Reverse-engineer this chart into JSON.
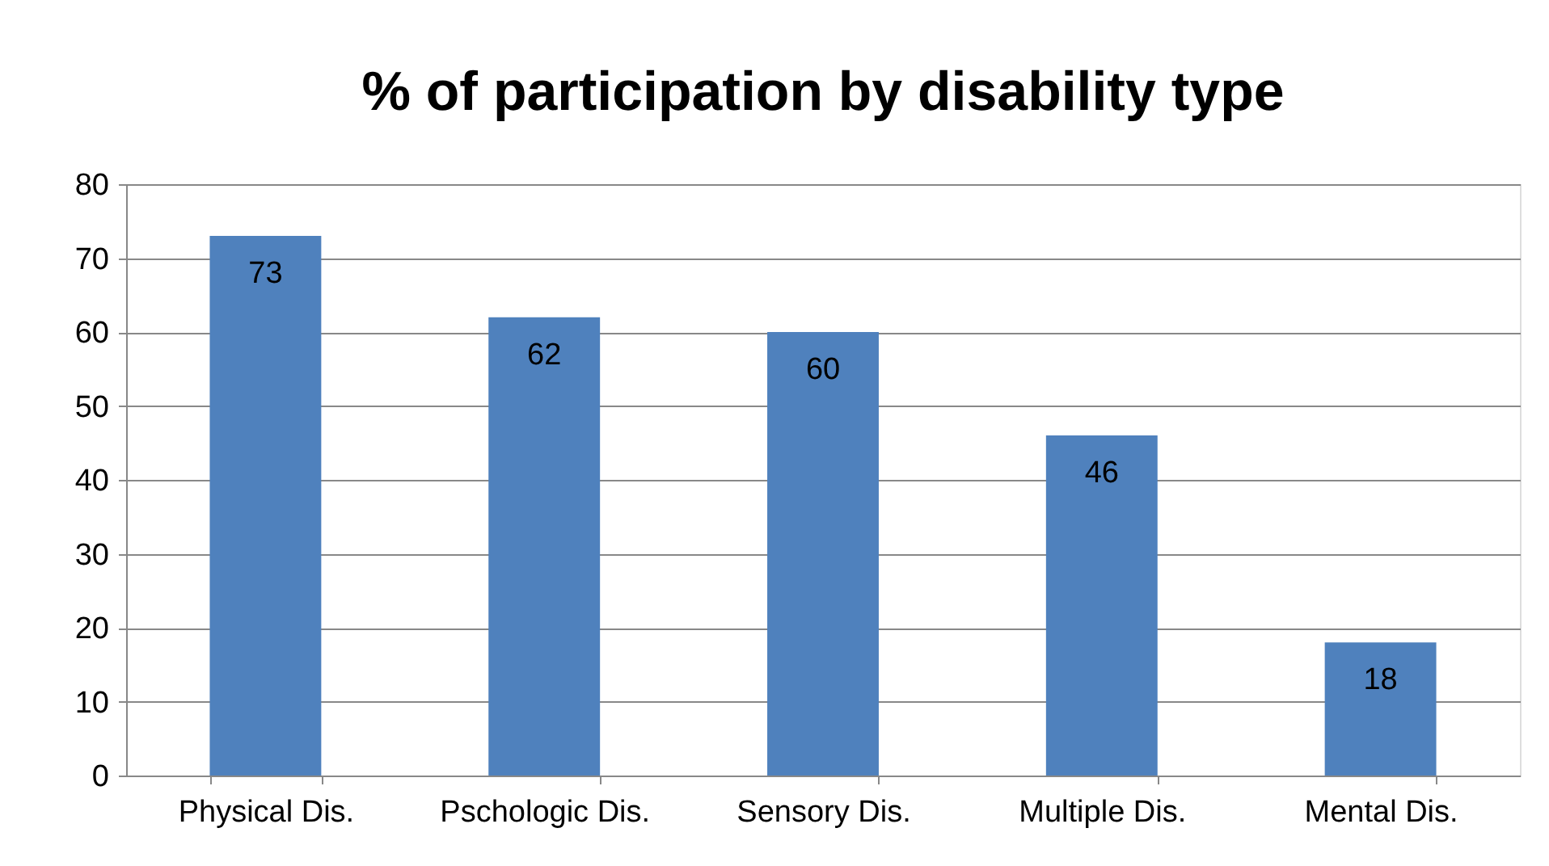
{
  "chart_data": {
    "type": "bar",
    "title": "% of participation by disability type",
    "categories": [
      "Physical Dis.",
      "Pschologic Dis.",
      "Sensory Dis.",
      "Multiple Dis.",
      "Mental Dis."
    ],
    "values": [
      73,
      62,
      60,
      46,
      18
    ],
    "color": "#4f81bd",
    "ylim": [
      0,
      80
    ],
    "yticks": [
      0,
      10,
      20,
      30,
      40,
      50,
      60,
      70,
      80
    ],
    "grid": "y",
    "data_labels": true
  }
}
